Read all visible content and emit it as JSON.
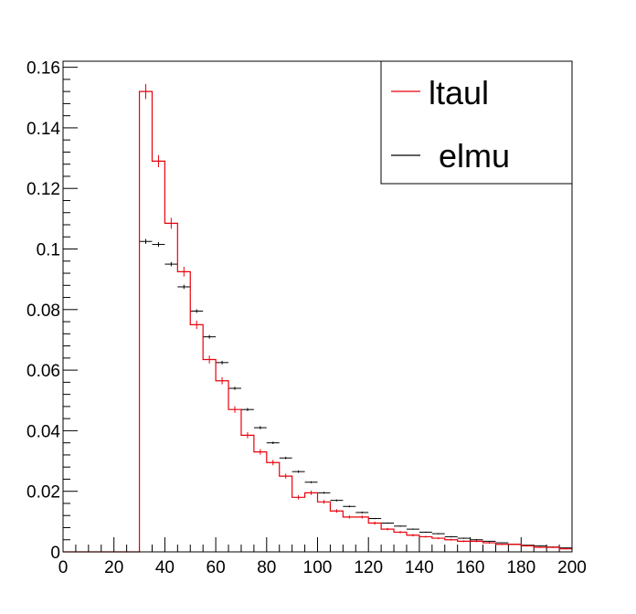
{
  "chart_data": {
    "type": "histogram",
    "title": "",
    "xlabel": "",
    "ylabel": "",
    "xlim": [
      0,
      200
    ],
    "ylim": [
      0,
      0.162
    ],
    "x_ticks": [
      0,
      20,
      40,
      60,
      80,
      100,
      120,
      140,
      160,
      180,
      200
    ],
    "x_tick_labels": [
      "0",
      "20",
      "40",
      "60",
      "80",
      "100",
      "120",
      "140",
      "160",
      "180",
      "200"
    ],
    "y_ticks": [
      0,
      0.02,
      0.04,
      0.06,
      0.08,
      0.1,
      0.12,
      0.14,
      0.16
    ],
    "y_tick_labels": [
      "0",
      "0.02",
      "0.04",
      "0.06",
      "0.08",
      "0.1",
      "0.12",
      "0.14",
      "0.16"
    ],
    "grid": false,
    "legend_position": "top-right",
    "bin_edges": [
      0,
      5,
      10,
      15,
      20,
      25,
      30,
      35,
      40,
      45,
      50,
      55,
      60,
      65,
      70,
      75,
      80,
      85,
      90,
      95,
      100,
      105,
      110,
      115,
      120,
      125,
      130,
      135,
      140,
      145,
      150,
      155,
      160,
      165,
      170,
      175,
      180,
      185,
      190,
      195,
      200
    ],
    "series": [
      {
        "name": "ltaul",
        "style": "step",
        "color": "#e8000b",
        "values": [
          0,
          0,
          0,
          0,
          0,
          0,
          0.152,
          0.129,
          0.1085,
          0.0925,
          0.075,
          0.0635,
          0.0565,
          0.047,
          0.0385,
          0.033,
          0.0295,
          0.025,
          0.018,
          0.0195,
          0.0165,
          0.0135,
          0.0115,
          0.0115,
          0.0095,
          0.0075,
          0.0065,
          0.0055,
          0.005,
          0.0045,
          0.004,
          0.0035,
          0.0035,
          0.003,
          0.0025,
          0.0025,
          0.002,
          0.0015,
          0.0015,
          0.001
        ],
        "errors": [
          0,
          0,
          0,
          0,
          0,
          0,
          0.0025,
          0.002,
          0.0018,
          0.0016,
          0.0014,
          0.0013,
          0.0012,
          0.0011,
          0.001,
          0.0009,
          0.0009,
          0.0008,
          0.0007,
          0.0007,
          0.0006,
          0.0006,
          0.0005,
          0.0005,
          0.0005,
          0.0004,
          0.0004,
          0.0004,
          0.0003,
          0.0003,
          0.0003,
          0.0003,
          0.0003,
          0.0003,
          0.0002,
          0.0002,
          0.0002,
          0.0002,
          0.0002,
          0.0002
        ]
      },
      {
        "name": "elmu",
        "style": "errorbar",
        "color": "#000000",
        "values": [
          0,
          0,
          0,
          0,
          0,
          0,
          0.1025,
          0.1015,
          0.095,
          0.0875,
          0.0795,
          0.071,
          0.0625,
          0.054,
          0.047,
          0.041,
          0.036,
          0.031,
          0.0265,
          0.023,
          0.0195,
          0.017,
          0.015,
          0.013,
          0.011,
          0.0095,
          0.0085,
          0.0075,
          0.0065,
          0.006,
          0.005,
          0.0045,
          0.004,
          0.0035,
          0.003,
          0.0025,
          0.0022,
          0.002,
          0.0016,
          0.0013
        ],
        "errors": [
          0,
          0,
          0,
          0,
          0,
          0,
          0.0008,
          0.0008,
          0.0007,
          0.0007,
          0.0006,
          0.0006,
          0.0006,
          0.0005,
          0.0005,
          0.0005,
          0.0004,
          0.0004,
          0.0004,
          0.0003,
          0.0003,
          0.0003,
          0.0003,
          0.0003,
          0.0002,
          0.0002,
          0.0002,
          0.0002,
          0.0002,
          0.0002,
          0.0002,
          0.0002,
          0.0002,
          0.0001,
          0.0001,
          0.0001,
          0.0001,
          0.0001,
          0.0001,
          0.0001
        ]
      }
    ]
  },
  "legend": {
    "entries": [
      {
        "label": "ltaul",
        "color": "#e8000b"
      },
      {
        "label": "elmu",
        "color": "#000000"
      }
    ]
  }
}
